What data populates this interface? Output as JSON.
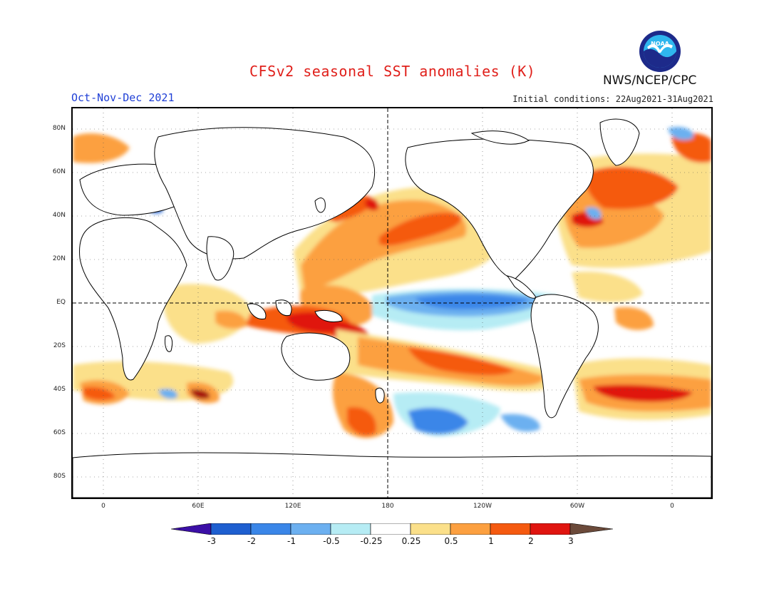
{
  "header": {
    "title": "CFSv2 seasonal SST anomalies (K)",
    "season": "Oct-Nov-Dec 2021",
    "initial_conditions": "Initial conditions: 22Aug2021-31Aug2021",
    "org": "NWS/NCEP/CPC",
    "logo_text": "NOAA"
  },
  "map": {
    "lat_labels": [
      "80N",
      "60N",
      "40N",
      "20N",
      "EQ",
      "20S",
      "40S",
      "60S",
      "80S"
    ],
    "lon_labels": [
      "0",
      "60E",
      "120E",
      "180",
      "120W",
      "60W",
      "0"
    ],
    "projection": "cylindrical equidistant, 0-360 longitude with extension",
    "reference_lines": [
      "equator",
      "dateline"
    ]
  },
  "colorbar": {
    "labels": [
      "-3",
      "-2",
      "-1",
      "-0.5",
      "-0.25",
      "0.25",
      "0.5",
      "1",
      "2",
      "3"
    ],
    "colors": [
      "#3b0fa6",
      "#1e5fd0",
      "#3a86e8",
      "#6cb0f0",
      "#b6ecf4",
      "#ffffff",
      "#fbe08a",
      "#fca040",
      "#f55a10",
      "#e01510",
      "#a50f10",
      "#6b4a3a"
    ],
    "units": "K"
  },
  "anomaly_regions": [
    {
      "name": "equatorial-pacific-cold-tongue",
      "level": "-1"
    },
    {
      "name": "north-pacific-warm-band",
      "level": "1"
    },
    {
      "name": "maritime-continent-warm",
      "level": "2"
    },
    {
      "name": "south-pacific-warm-diagonal",
      "level": "1"
    },
    {
      "name": "southern-ocean-cold-patch",
      "level": "-1"
    },
    {
      "name": "north-atlantic-warm",
      "level": "1"
    },
    {
      "name": "south-atlantic-warm-band",
      "level": "2"
    },
    {
      "name": "indian-ocean-south-warm",
      "level": "1"
    }
  ]
}
